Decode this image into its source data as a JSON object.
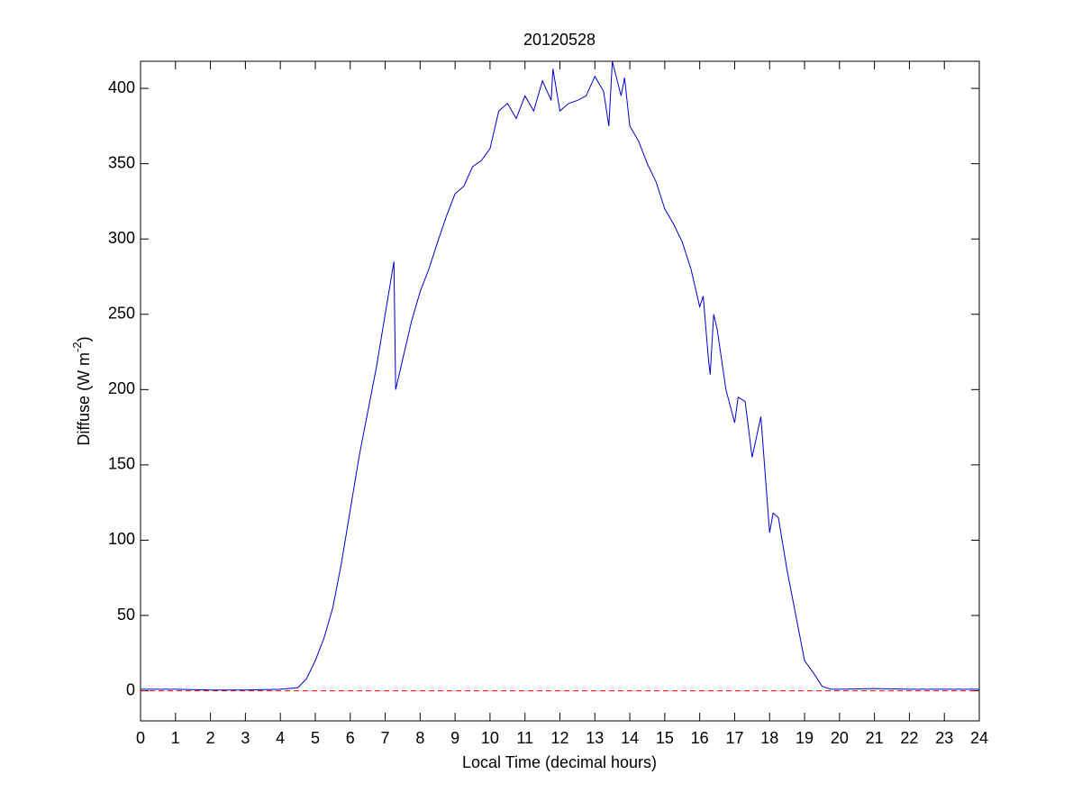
{
  "chart_data": {
    "type": "line",
    "title": "20120528",
    "xlabel": "Local Time (decimal hours)",
    "ylabel": {
      "text": "Diffuse (W m",
      "superscript": "-2",
      "suffix": ")"
    },
    "series": [
      {
        "color": "#0000cc",
        "x": [
          0,
          1,
          2,
          3,
          4,
          4.5,
          4.75,
          5,
          5.25,
          5.5,
          5.75,
          6,
          6.25,
          6.5,
          6.75,
          7,
          7.25,
          7.3,
          7.5,
          7.75,
          8,
          8.25,
          8.5,
          8.75,
          9,
          9.25,
          9.5,
          9.75,
          10,
          10.25,
          10.5,
          10.75,
          11,
          11.25,
          11.5,
          11.75,
          11.8,
          12,
          12.25,
          12.5,
          12.75,
          13,
          13.25,
          13.4,
          13.5,
          13.75,
          13.85,
          14,
          14.25,
          14.5,
          14.75,
          15,
          15.25,
          15.5,
          15.75,
          16,
          16.1,
          16.25,
          16.3,
          16.4,
          16.5,
          16.75,
          17,
          17.1,
          17.3,
          17.5,
          17.75,
          18,
          18.1,
          18.25,
          18.5,
          18.75,
          19,
          19.25,
          19.5,
          19.75,
          20,
          21,
          22,
          23,
          24
        ],
        "values": [
          1,
          1,
          0.5,
          0.5,
          1,
          2,
          8,
          20,
          35,
          55,
          85,
          120,
          155,
          185,
          215,
          250,
          285,
          200,
          220,
          245,
          265,
          280,
          298,
          315,
          330,
          335,
          348,
          352,
          360,
          385,
          390,
          380,
          395,
          385,
          405,
          392,
          413,
          385,
          390,
          392,
          395,
          408,
          398,
          375,
          418,
          395,
          407,
          375,
          365,
          350,
          338,
          320,
          310,
          298,
          280,
          255,
          262,
          220,
          210,
          250,
          240,
          200,
          178,
          195,
          192,
          155,
          182,
          105,
          118,
          115,
          80,
          50,
          20,
          12,
          3,
          1,
          1,
          1.5,
          1,
          1,
          1
        ]
      }
    ],
    "reference_line": {
      "y": 0,
      "color": "#ff0000",
      "style": "dashed"
    },
    "xlim": [
      0,
      24
    ],
    "ylim": [
      -20,
      418
    ],
    "xticks": [
      0,
      1,
      2,
      3,
      4,
      5,
      6,
      7,
      8,
      9,
      10,
      11,
      12,
      13,
      14,
      15,
      16,
      17,
      18,
      19,
      20,
      21,
      22,
      23,
      24
    ],
    "yticks": [
      0,
      50,
      100,
      150,
      200,
      250,
      300,
      350,
      400
    ]
  }
}
